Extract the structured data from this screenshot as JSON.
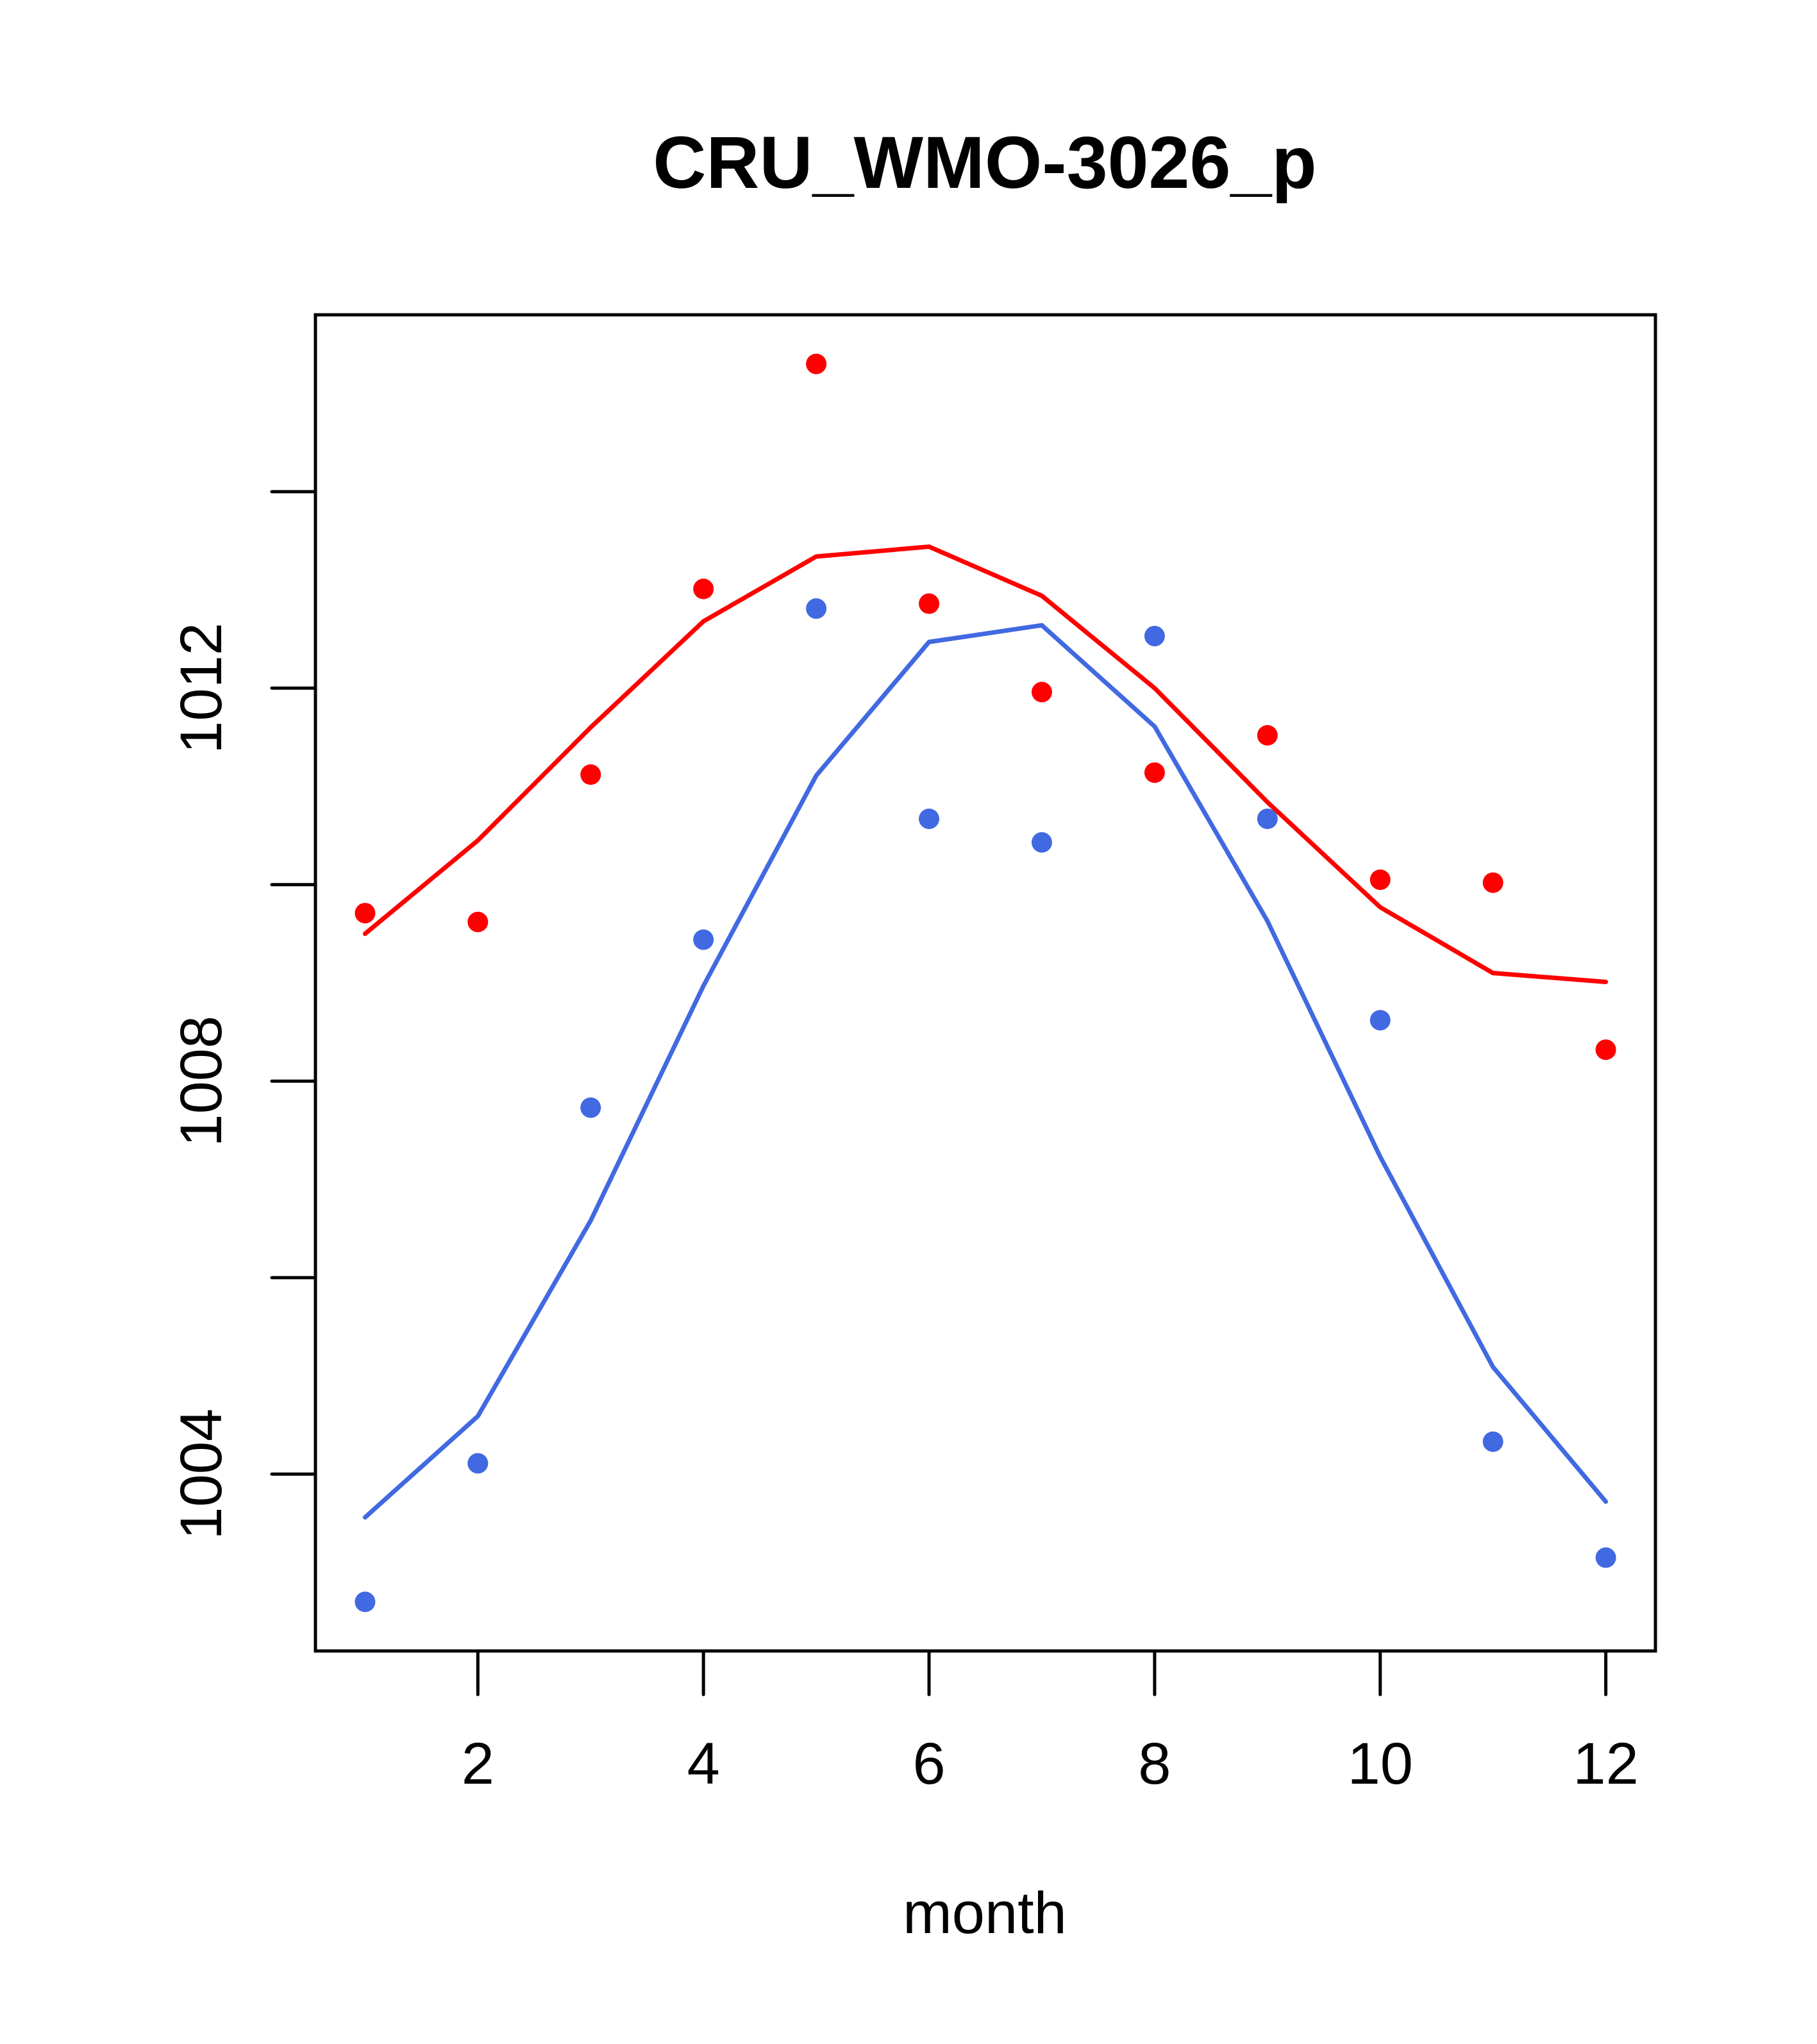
{
  "chart_data": {
    "type": "line",
    "title": "CRU_WMO-3026_p",
    "xlabel": "month",
    "ylabel": "",
    "xlim": [
      0.56,
      12.44
    ],
    "ylim": [
      1002.2,
      1015.8
    ],
    "x_ticks": [
      2,
      4,
      6,
      8,
      10,
      12
    ],
    "x_tick_labels": [
      "2",
      "4",
      "6",
      "8",
      "10",
      "12"
    ],
    "y_ticks": [
      1004,
      1006,
      1008,
      1010,
      1012,
      1014
    ],
    "y_tick_labels": [
      "1004",
      "",
      "1008",
      "",
      "1012",
      ""
    ],
    "grid": false,
    "legend": null,
    "x": [
      1,
      2,
      3,
      4,
      5,
      6,
      7,
      8,
      9,
      10,
      11,
      12
    ],
    "series": [
      {
        "name": "red points",
        "kind": "points",
        "color": "#ff0000",
        "values": [
          1009.71,
          1009.62,
          1011.12,
          1013.01,
          1015.3,
          1012.86,
          1011.96,
          1011.14,
          1011.52,
          1010.05,
          1010.02,
          1008.32
        ]
      },
      {
        "name": "red line",
        "kind": "line",
        "color": "#ff0000",
        "values": [
          1009.5,
          1010.45,
          1011.6,
          1012.68,
          1013.34,
          1013.44,
          1012.94,
          1012.0,
          1010.84,
          1009.77,
          1009.1,
          1009.01
        ]
      },
      {
        "name": "blue points",
        "kind": "points",
        "color": "#4169e1",
        "values": [
          1002.7,
          1004.11,
          1007.73,
          1009.44,
          1012.81,
          1010.67,
          1010.43,
          1012.53,
          1010.67,
          1008.62,
          1004.33,
          1003.15
        ]
      },
      {
        "name": "blue line",
        "kind": "line",
        "color": "#4169e1",
        "values": [
          1003.56,
          1004.59,
          1006.58,
          1008.97,
          1011.11,
          1012.47,
          1012.64,
          1011.61,
          1009.63,
          1007.23,
          1005.09,
          1003.72
        ]
      }
    ]
  }
}
